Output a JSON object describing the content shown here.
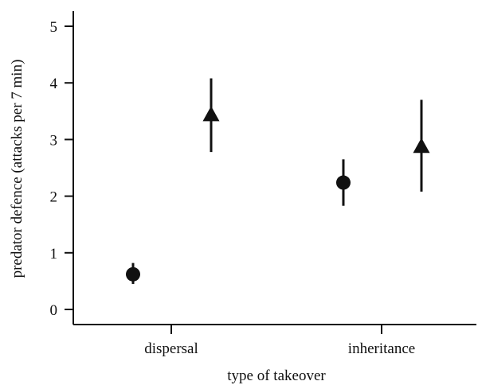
{
  "chart_data": {
    "type": "scatter",
    "title": "",
    "xlabel": "type of takeover",
    "ylabel": "predator defence (attacks per 7 min)",
    "categories": [
      "dispersal",
      "inheritance"
    ],
    "ylim": [
      0,
      5
    ],
    "yticks": [
      0,
      1,
      2,
      3,
      4,
      5
    ],
    "grid": false,
    "legend": "none",
    "series": [
      {
        "marker": "circle",
        "values": [
          0.62,
          2.24
        ],
        "error_low": [
          0.45,
          1.83
        ],
        "error_high": [
          0.82,
          2.65
        ]
      },
      {
        "marker": "triangle",
        "values": [
          3.43,
          2.87
        ],
        "error_low": [
          2.78,
          2.08
        ],
        "error_high": [
          4.08,
          3.7
        ]
      }
    ],
    "colors": {
      "marks": "#111111",
      "axes": "#111111"
    }
  }
}
